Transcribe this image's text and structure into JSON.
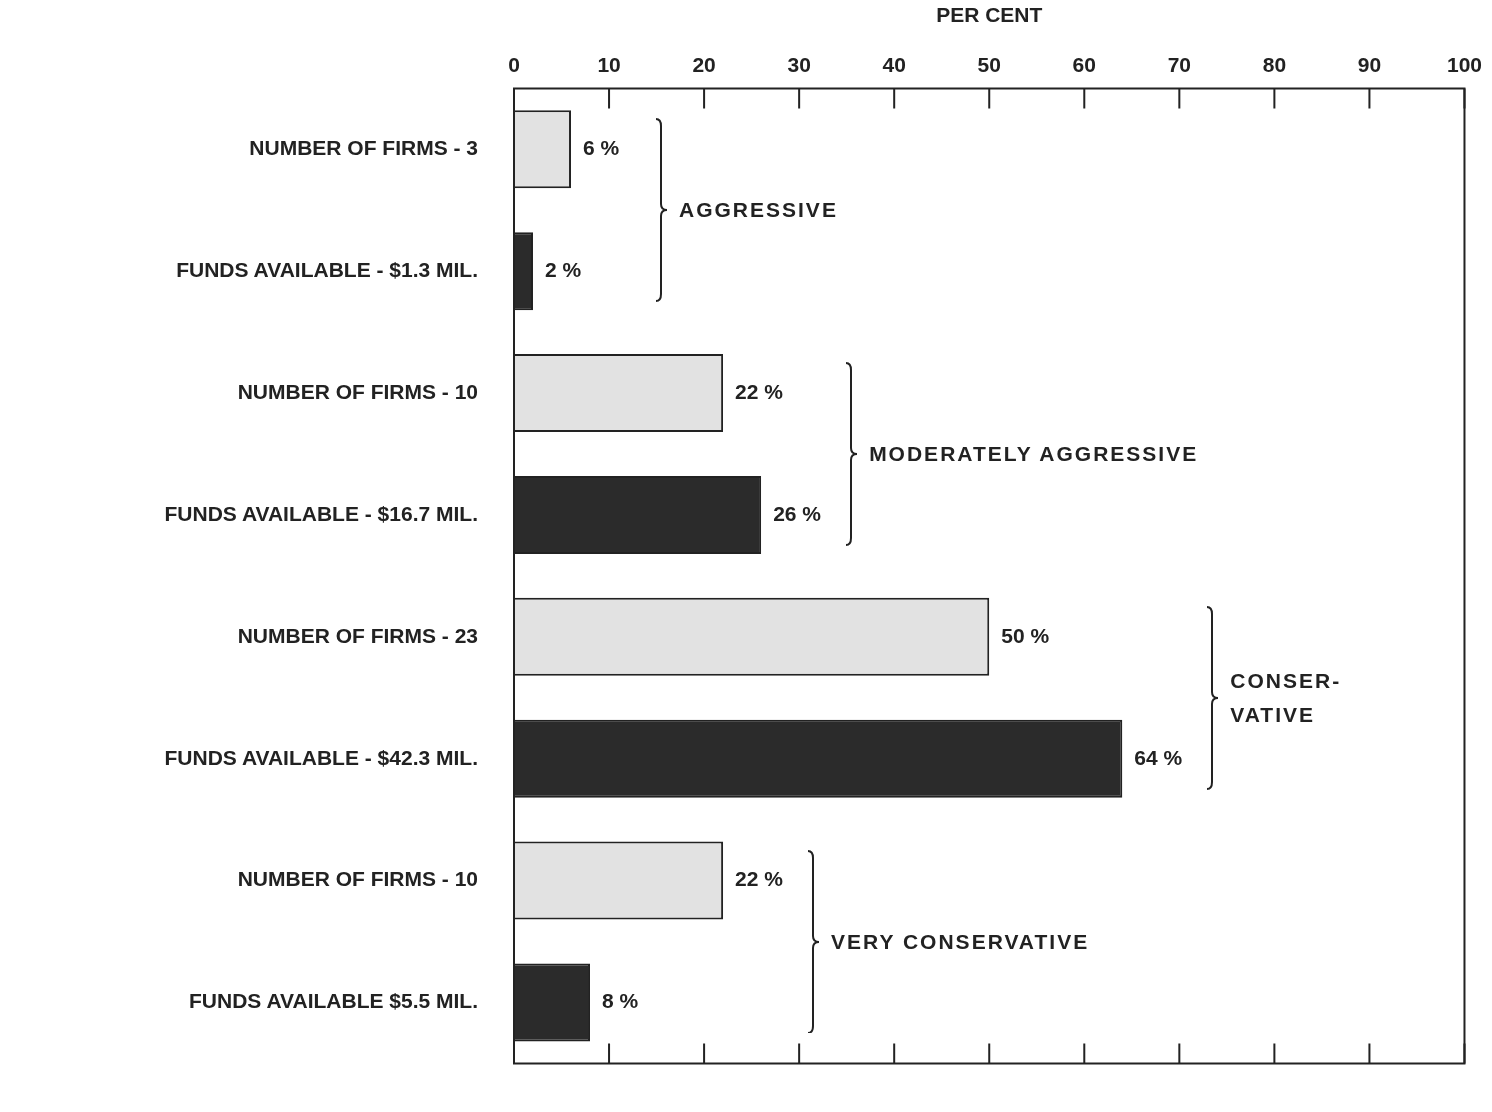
{
  "chart_data": {
    "type": "bar",
    "orientation": "horizontal",
    "xlabel": "PER CENT",
    "categories": [
      "NUMBER OF FIRMS - 3",
      "FUNDS AVAILABLE - $1.3 MIL.",
      "NUMBER OF FIRMS - 10",
      "FUNDS AVAILABLE - $16.7 MIL.",
      "NUMBER OF FIRMS - 23",
      "FUNDS AVAILABLE - $42.3 MIL.",
      "NUMBER OF FIRMS - 10",
      "FUNDS AVAILABLE $5.5 MIL."
    ],
    "values": [
      6,
      2,
      22,
      26,
      50,
      64,
      22,
      8
    ],
    "colors": [
      "#e2e2e2",
      "#2b2b2b",
      "#e2e2e2",
      "#2b2b2b",
      "#e2e2e2",
      "#2b2b2b",
      "#e2e2e2",
      "#2b2b2b"
    ],
    "value_labels": [
      "6 %",
      "2 %",
      "22 %",
      "26 %",
      "50 %",
      "64 %",
      "22 %",
      "8 %"
    ],
    "xlim": [
      0,
      100
    ],
    "xticks": [
      0,
      10,
      20,
      30,
      40,
      50,
      60,
      70,
      80,
      90,
      100
    ],
    "grid": false,
    "annotations": [
      "AGGRESSIVE",
      "MODERATELY AGGRESSIVE",
      "CONSER-\nVATIVE",
      "VERY CONSERVATIVE"
    ]
  }
}
